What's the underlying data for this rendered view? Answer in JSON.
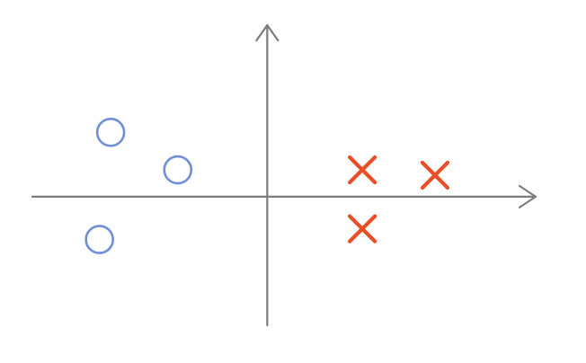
{
  "chart_data": {
    "type": "scatter",
    "title": "",
    "xlabel": "",
    "ylabel": "",
    "xlim": [
      -2.1,
      2.4
    ],
    "ylim": [
      -1.2,
      1.6
    ],
    "grid": false,
    "axes_color": "#7c7c7c",
    "series": [
      {
        "marker": "circle",
        "color": "#6f8fd8",
        "points": [
          {
            "x": -1.4,
            "y": 0.6
          },
          {
            "x": -0.8,
            "y": 0.25
          },
          {
            "x": -1.5,
            "y": -0.4
          }
        ]
      },
      {
        "marker": "cross",
        "color": "#e84f26",
        "points": [
          {
            "x": 0.85,
            "y": 0.25
          },
          {
            "x": 1.5,
            "y": 0.2
          },
          {
            "x": 0.85,
            "y": -0.3
          }
        ]
      }
    ]
  }
}
